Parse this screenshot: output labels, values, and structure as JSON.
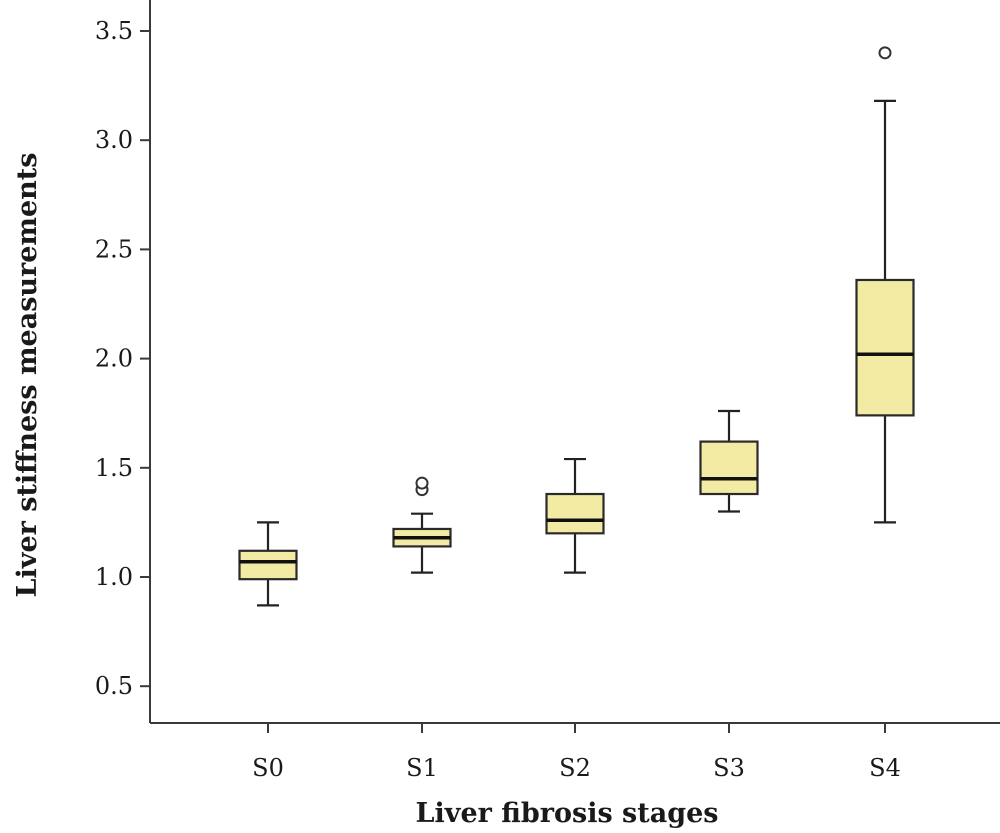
{
  "chart_data": {
    "type": "box",
    "title": "",
    "xlabel": "Liver fibrosis stages",
    "ylabel": "Liver stiffness measurements",
    "ylim": [
      0.3,
      3.6
    ],
    "y_ticks": [
      0.5,
      1.0,
      1.5,
      2.0,
      2.5,
      3.0,
      3.5
    ],
    "y_tick_labels": [
      "0.5",
      "1.0",
      "1.5",
      "2.0",
      "2.5",
      "3.0",
      "3.5"
    ],
    "grid": false,
    "legend": "none",
    "box_color": "#f3eaa3",
    "categories": [
      "S0",
      "S1",
      "S2",
      "S3",
      "S4"
    ],
    "boxes": [
      {
        "min": 0.87,
        "q1": 0.99,
        "median": 1.07,
        "q3": 1.12,
        "max": 1.25,
        "outliers": []
      },
      {
        "min": 1.02,
        "q1": 1.14,
        "median": 1.18,
        "q3": 1.22,
        "max": 1.29,
        "outliers": [
          1.4,
          1.43
        ]
      },
      {
        "min": 1.02,
        "q1": 1.2,
        "median": 1.26,
        "q3": 1.38,
        "max": 1.54,
        "outliers": []
      },
      {
        "min": 1.3,
        "q1": 1.38,
        "median": 1.45,
        "q3": 1.62,
        "max": 1.76,
        "outliers": []
      },
      {
        "min": 1.25,
        "q1": 1.74,
        "median": 2.02,
        "q3": 2.36,
        "max": 3.18,
        "outliers": [
          3.4
        ]
      }
    ]
  }
}
